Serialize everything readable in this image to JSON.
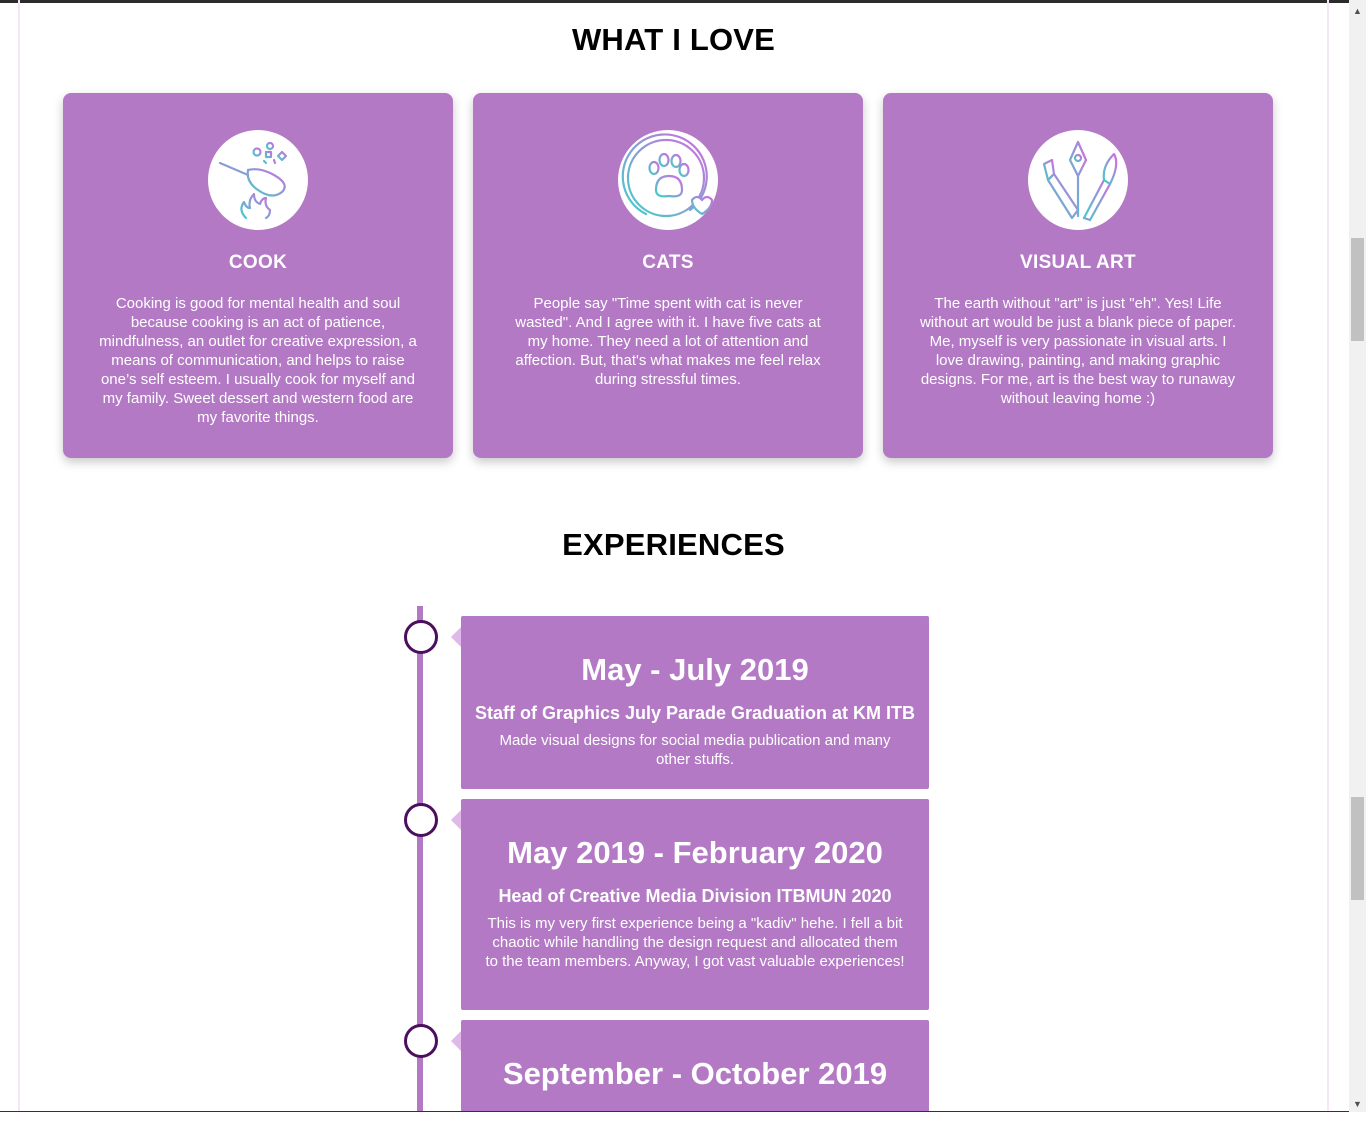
{
  "love": {
    "title": "WHAT I LOVE",
    "cards": [
      {
        "icon": "frying-pan-icon",
        "title": "COOK",
        "text": "Cooking is good for mental health and soul because cooking is an act of patience, mindfulness, an outlet for creative expression, a means of communication, and helps to raise one’s self esteem. I usually cook for myself and my family. Sweet dessert and western food are my favorite things."
      },
      {
        "icon": "cat-paw-icon",
        "title": "CATS",
        "text": "People say \"Time spent with cat is never wasted\". And I agree with it. I have five cats at my home. They need a lot of attention and affection. But, that's what makes me feel relax during stressful times."
      },
      {
        "icon": "art-tools-icon",
        "title": "VISUAL ART",
        "text": "The earth without \"art\" is just \"eh\". Yes! Life without art would be just a blank piece of paper. Me, myself is very passionate in visual arts. I love drawing, painting, and making graphic designs. For me, art is the best way to runaway without leaving home :)"
      }
    ]
  },
  "experiences": {
    "title": "EXPERIENCES",
    "items": [
      {
        "date": "May - July 2019",
        "role": "Staff of Graphics July Parade Graduation at KM ITB",
        "desc": "Made visual designs for social media publication and many other stuffs."
      },
      {
        "date": "May 2019 - February 2020",
        "role": "Head of Creative Media Division ITBMUN 2020",
        "desc": "This is my very first experience being a \"kadiv\" hehe. I fell a bit chaotic while handling the design request and allocated them to the team members. Anyway, I got vast valuable experiences!"
      },
      {
        "date": "September - October 2019",
        "role": "",
        "desc": ""
      }
    ]
  },
  "colors": {
    "card": "#b379c5",
    "timeline_dot": "#4b0f5e",
    "text_light": "#ffffff"
  },
  "scrollbar": {
    "up_icon": "scroll-up-arrow-icon",
    "down_icon": "scroll-down-arrow-icon"
  }
}
